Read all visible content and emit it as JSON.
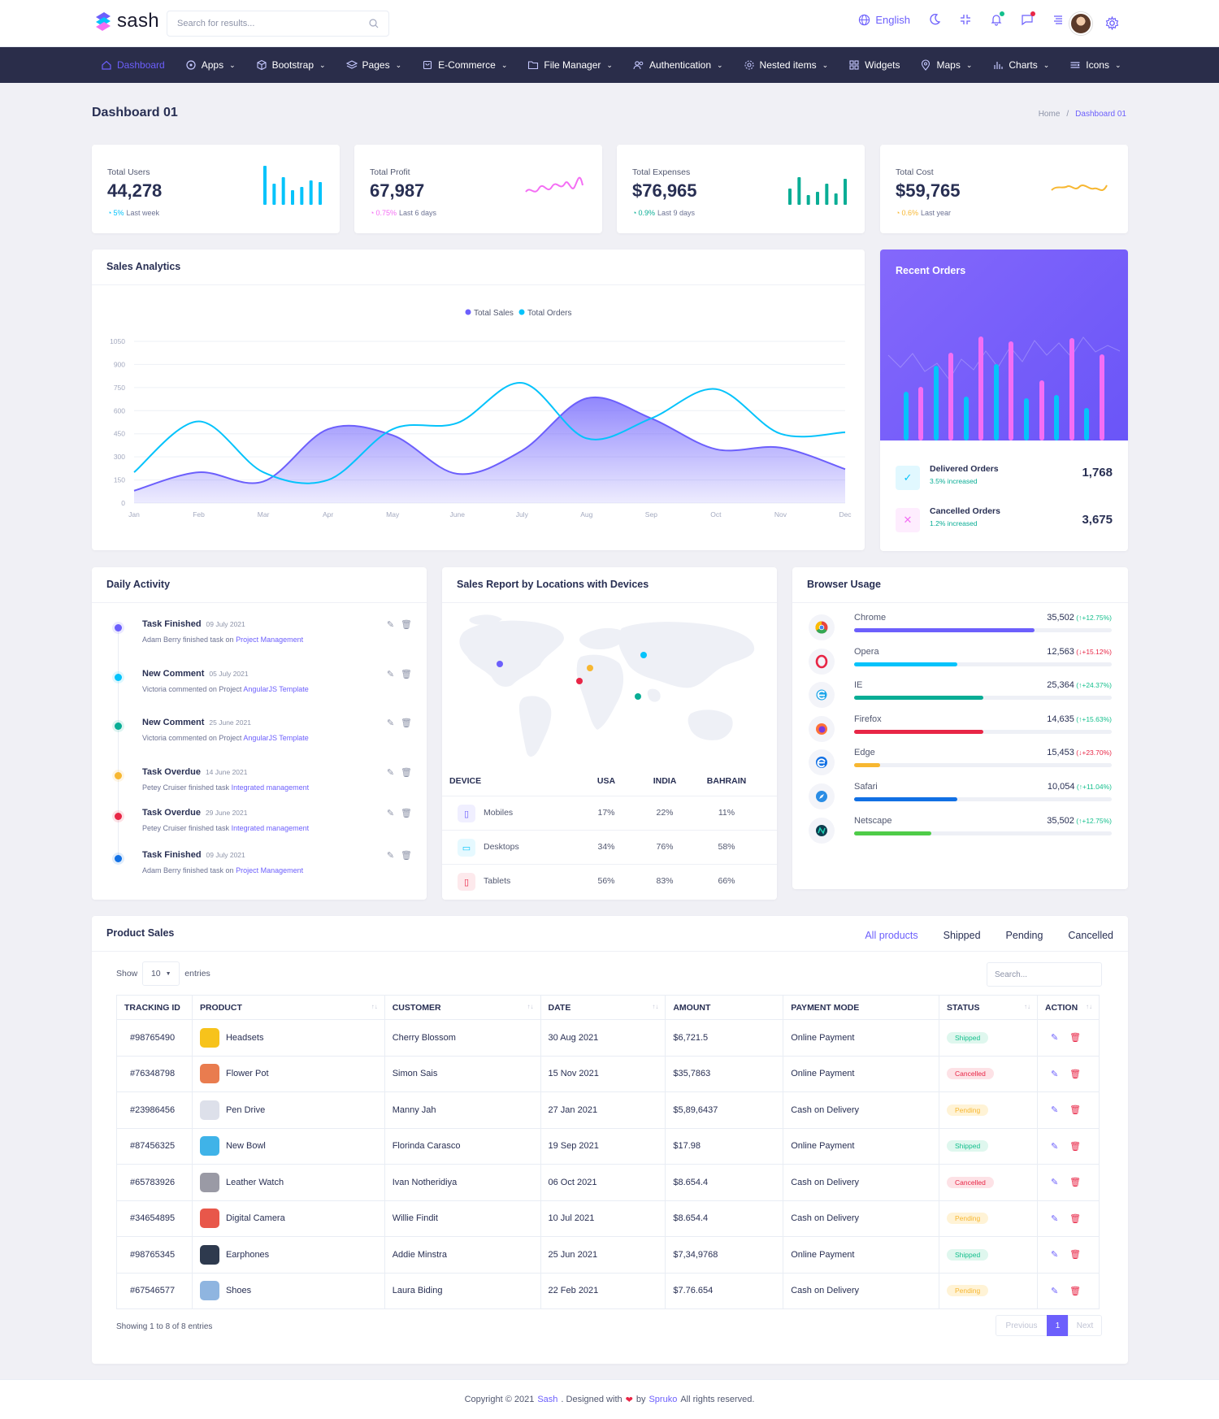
{
  "header": {
    "logo_text": "sash",
    "search_placeholder": "Search for results...",
    "language": "English"
  },
  "nav": [
    {
      "label": "Dashboard",
      "icon": "home-icon",
      "active": true,
      "chevron": false
    },
    {
      "label": "Apps",
      "icon": "apps-icon",
      "chevron": true
    },
    {
      "label": "Bootstrap",
      "icon": "cube-icon",
      "chevron": true
    },
    {
      "label": "Pages",
      "icon": "layers-icon",
      "chevron": true
    },
    {
      "label": "E-Commerce",
      "icon": "cart-icon",
      "chevron": true
    },
    {
      "label": "File Manager",
      "icon": "folder-icon",
      "chevron": true
    },
    {
      "label": "Authentication",
      "icon": "users-icon",
      "chevron": true
    },
    {
      "label": "Nested items",
      "icon": "nested-icon",
      "chevron": true
    },
    {
      "label": "Widgets",
      "icon": "grid-icon",
      "chevron": false
    },
    {
      "label": "Maps",
      "icon": "map-pin-icon",
      "chevron": true
    },
    {
      "label": "Charts",
      "icon": "chart-icon",
      "chevron": true
    },
    {
      "label": "Icons",
      "icon": "icons-icon",
      "chevron": true
    }
  ],
  "page": {
    "title": "Dashboard 01",
    "breadcrumb_home": "Home",
    "breadcrumb_sep": "/",
    "breadcrumb_current": "Dashboard 01"
  },
  "stats": [
    {
      "label": "Total Users",
      "value": "44,278",
      "change": "5%",
      "period": "Last week",
      "color": "#05c3fb",
      "spark": "bar"
    },
    {
      "label": "Total Profit",
      "value": "67,987",
      "change": "0.75%",
      "period": "Last 6 days",
      "color": "#f46ef4",
      "spark": "line"
    },
    {
      "label": "Total Expenses",
      "value": "$76,965",
      "change": "0.9%",
      "period": "Last 9 days",
      "color": "#09ad95",
      "spark": "bar"
    },
    {
      "label": "Total Cost",
      "value": "$59,765",
      "change": "0.6%",
      "period": "Last year",
      "color": "#f7b731",
      "spark": "line"
    }
  ],
  "sales_analytics": {
    "title": "Sales Analytics",
    "legend": [
      "Total Sales",
      "Total Orders"
    ],
    "colors": {
      "sales": "#6c5ffc",
      "orders": "#05c3fb"
    }
  },
  "chart_data": {
    "type": "area",
    "categories": [
      "Jan",
      "Feb",
      "Mar",
      "Apr",
      "May",
      "June",
      "July",
      "Aug",
      "Sep",
      "Oct",
      "Nov",
      "Dec"
    ],
    "series": [
      {
        "name": "Total Sales",
        "values": [
          80,
          200,
          140,
          480,
          440,
          190,
          340,
          680,
          550,
          350,
          360,
          220
        ]
      },
      {
        "name": "Total Orders",
        "values": [
          200,
          530,
          200,
          150,
          480,
          520,
          780,
          420,
          550,
          740,
          450,
          460
        ]
      }
    ],
    "yticks": [
      "1050",
      "900",
      "750",
      "600",
      "450",
      "300",
      "150",
      "0"
    ],
    "ylim": [
      0,
      1050
    ],
    "grid": true,
    "legend_position": "top-center"
  },
  "recent_orders": {
    "title": "Recent Orders",
    "items": [
      {
        "label": "Delivered Orders",
        "sub": "3.5% increased",
        "value": "1,768",
        "icon": "check-icon",
        "color": "#05c3fb"
      },
      {
        "label": "Cancelled Orders",
        "sub": "1.2% increased",
        "value": "3,675",
        "icon": "x-icon",
        "color": "#f46ef4"
      }
    ]
  },
  "daily_activity": {
    "title": "Daily Activity",
    "items": [
      {
        "title": "Task Finished",
        "date": "09 July 2021",
        "desc": "Adam Berry finished task on",
        "link": "Project Management",
        "color": "#6c5ffc"
      },
      {
        "title": "New Comment",
        "date": "05 July 2021",
        "desc": "Victoria commented on Project",
        "link": "AngularJS Template",
        "color": "#05c3fb"
      },
      {
        "title": "New Comment",
        "date": "25 June 2021",
        "desc": "Victoria commented on Project",
        "link": "AngularJS Template",
        "color": "#09ad95"
      },
      {
        "title": "Task Overdue",
        "date": "14 June 2021",
        "desc": "Petey Cruiser finished task",
        "link": "Integrated management",
        "color": "#f7b731"
      },
      {
        "title": "Task Overdue",
        "date": "29 June 2021",
        "desc": "Petey Cruiser finished task",
        "link": "Integrated management",
        "color": "#e82646"
      },
      {
        "title": "Task Finished",
        "date": "09 July 2021",
        "desc": "Adam Berry finished task on",
        "link": "Project Management",
        "color": "#1170e4"
      }
    ]
  },
  "sales_report": {
    "title": "Sales Report by Locations with Devices",
    "headers": [
      "DEVICE",
      "USA",
      "INDIA",
      "BAHRAIN"
    ],
    "rows": [
      {
        "device": "Mobiles",
        "usa": "17%",
        "india": "22%",
        "bahrain": "11%",
        "icon": "mobile-icon",
        "color": "#6c5ffc"
      },
      {
        "device": "Desktops",
        "usa": "34%",
        "india": "76%",
        "bahrain": "58%",
        "icon": "desktop-icon",
        "color": "#05c3fb"
      },
      {
        "device": "Tablets",
        "usa": "56%",
        "india": "83%",
        "bahrain": "66%",
        "icon": "tablet-icon",
        "color": "#e82646"
      }
    ]
  },
  "browser_usage": {
    "title": "Browser Usage",
    "items": [
      {
        "name": "Chrome",
        "value": "35,502",
        "change": "12.75%",
        "up": true,
        "pct": 70,
        "color": "#6c5ffc",
        "icon": "chrome-icon"
      },
      {
        "name": "Opera",
        "value": "12,563",
        "change": "15.12%",
        "up": false,
        "pct": 40,
        "color": "#05c3fb",
        "icon": "opera-icon"
      },
      {
        "name": "IE",
        "value": "25,364",
        "change": "24.37%",
        "up": true,
        "pct": 50,
        "color": "#09ad95",
        "icon": "ie-icon"
      },
      {
        "name": "Firefox",
        "value": "14,635",
        "change": "15.63%",
        "up": true,
        "pct": 50,
        "color": "#e82646",
        "icon": "firefox-icon"
      },
      {
        "name": "Edge",
        "value": "15,453",
        "change": "23.70%",
        "up": false,
        "pct": 10,
        "color": "#f7b731",
        "icon": "edge-icon"
      },
      {
        "name": "Safari",
        "value": "10,054",
        "change": "11.04%",
        "up": true,
        "pct": 40,
        "color": "#1170e4",
        "icon": "safari-icon"
      },
      {
        "name": "Netscape",
        "value": "35,502",
        "change": "12.75%",
        "up": true,
        "pct": 30,
        "color": "#4ecc48",
        "icon": "netscape-icon"
      }
    ]
  },
  "product_sales": {
    "title": "Product Sales",
    "tabs": [
      "All products",
      "Shipped",
      "Pending",
      "Cancelled"
    ],
    "show_label": "Show",
    "entries_value": "10",
    "entries_label": "entries",
    "search_placeholder": "Search...",
    "columns": [
      "TRACKING ID",
      "PRODUCT",
      "CUSTOMER",
      "DATE",
      "AMOUNT",
      "PAYMENT MODE",
      "STATUS",
      "ACTION"
    ],
    "rows": [
      {
        "id": "#98765490",
        "product": "Headsets",
        "customer": "Cherry Blossom",
        "date": "30 Aug 2021",
        "amount": "$6,721.5",
        "payment": "Online Payment",
        "status": "Shipped",
        "thumb": "#f7c31b"
      },
      {
        "id": "#76348798",
        "product": "Flower Pot",
        "customer": "Simon Sais",
        "date": "15 Nov 2021",
        "amount": "$35,7863",
        "payment": "Online Payment",
        "status": "Cancelled",
        "thumb": "#e97c4f"
      },
      {
        "id": "#23986456",
        "product": "Pen Drive",
        "customer": "Manny Jah",
        "date": "27 Jan 2021",
        "amount": "$5,89,6437",
        "payment": "Cash on Delivery",
        "status": "Pending",
        "thumb": "#dde0ea"
      },
      {
        "id": "#87456325",
        "product": "New Bowl",
        "customer": "Florinda Carasco",
        "date": "19 Sep 2021",
        "amount": "$17.98",
        "payment": "Online Payment",
        "status": "Shipped",
        "thumb": "#3fb3e8"
      },
      {
        "id": "#65783926",
        "product": "Leather Watch",
        "customer": "Ivan Notheridiya",
        "date": "06 Oct 2021",
        "amount": "$8.654.4",
        "payment": "Cash on Delivery",
        "status": "Cancelled",
        "thumb": "#9a9aa5"
      },
      {
        "id": "#34654895",
        "product": "Digital Camera",
        "customer": "Willie Findit",
        "date": "10 Jul 2021",
        "amount": "$8.654.4",
        "payment": "Cash on Delivery",
        "status": "Pending",
        "thumb": "#e8574a"
      },
      {
        "id": "#98765345",
        "product": "Earphones",
        "customer": "Addie Minstra",
        "date": "25 Jun 2021",
        "amount": "$7,34,9768",
        "payment": "Online Payment",
        "status": "Shipped",
        "thumb": "#2e3a4e"
      },
      {
        "id": "#67546577",
        "product": "Shoes",
        "customer": "Laura Biding",
        "date": "22 Feb 2021",
        "amount": "$7.76.654",
        "payment": "Cash on Delivery",
        "status": "Pending",
        "thumb": "#8fb5e0"
      }
    ],
    "showing": "Showing 1 to 8 of 8 entries",
    "prev": "Previous",
    "page": "1",
    "next": "Next"
  },
  "footer": {
    "prefix": "Copyright © 2021",
    "brand": "Sash",
    "mid": ". Designed with",
    "by": "by",
    "company": "Spruko",
    "suffix": "All rights reserved."
  }
}
